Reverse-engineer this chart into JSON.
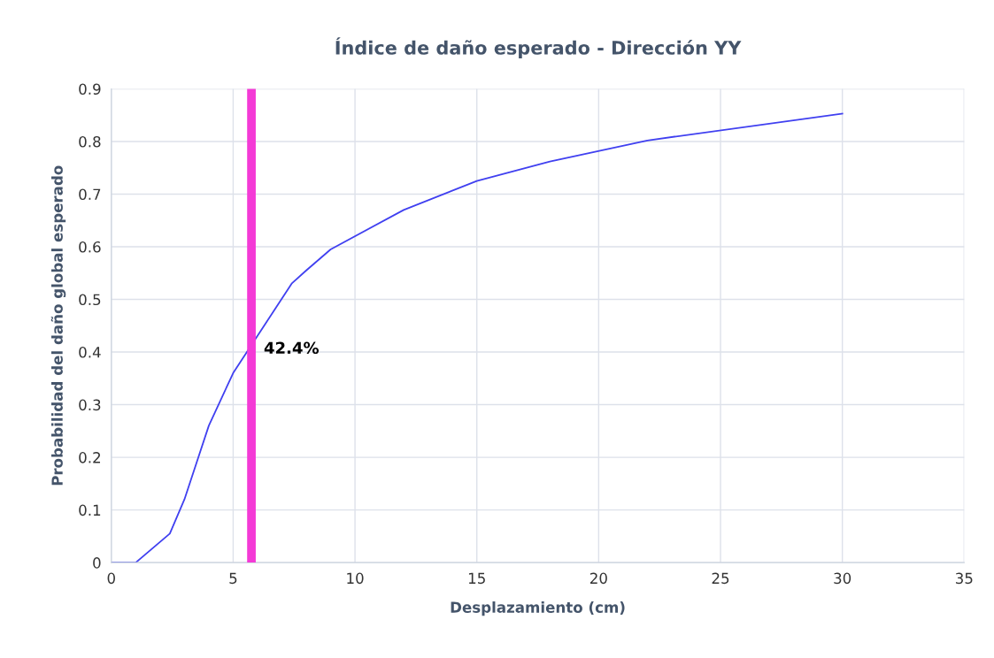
{
  "chart_data": {
    "type": "line",
    "title": "Índice de daño esperado - Dirección YY",
    "xlabel": "Desplazamiento (cm)",
    "ylabel": "Probabilidad del daño global esperado",
    "x": [
      0,
      1,
      2.4,
      3,
      4,
      5,
      7.4,
      8,
      9,
      12,
      15,
      18,
      22,
      30
    ],
    "series": [
      {
        "color": "#4040f0",
        "values": [
          0,
          0,
          0.055,
          0.12,
          0.26,
          0.36,
          0.53,
          0.555,
          0.595,
          0.67,
          0.725,
          0.762,
          0.802,
          0.853
        ]
      }
    ],
    "xlim": [
      0,
      35
    ],
    "xticks": [
      0,
      5,
      10,
      15,
      20,
      25,
      30,
      35
    ],
    "ylim": [
      0,
      0.9
    ],
    "yticks": [
      0,
      0.1,
      0.2,
      0.3,
      0.4,
      0.5,
      0.6,
      0.7,
      0.8,
      0.9
    ],
    "grid": true,
    "ref_lines": [
      {
        "axis": "x",
        "value": 5.75,
        "color": "#f43ad6"
      }
    ],
    "annotations": [
      {
        "text": "42.4%",
        "x": 5.75,
        "y": 0.424
      }
    ]
  }
}
